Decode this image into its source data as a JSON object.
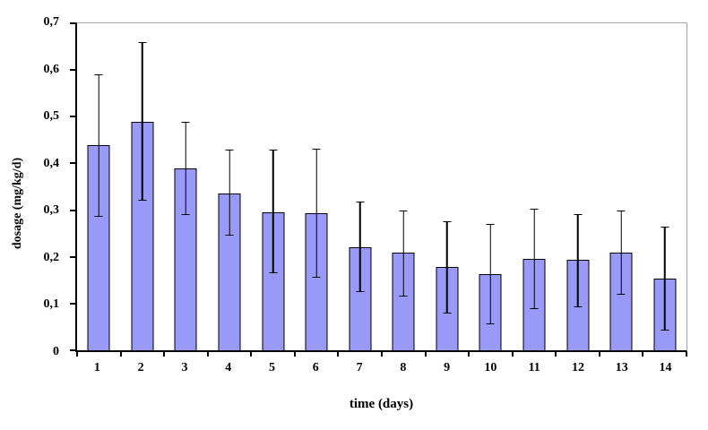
{
  "figure": {
    "background": "#FFFFFF"
  },
  "chart_data": {
    "type": "bar",
    "title": "",
    "xlabel": "time (days)",
    "ylabel": "dosage (mg/kg/d)",
    "categories": [
      "1",
      "2",
      "3",
      "4",
      "5",
      "6",
      "7",
      "8",
      "9",
      "10",
      "11",
      "12",
      "13",
      "14"
    ],
    "values": [
      0.44,
      0.49,
      0.39,
      0.335,
      0.295,
      0.293,
      0.22,
      0.21,
      0.178,
      0.163,
      0.195,
      0.193,
      0.209,
      0.154
    ],
    "error_high": [
      0.59,
      0.66,
      0.49,
      0.43,
      0.43,
      0.432,
      0.318,
      0.3,
      0.277,
      0.271,
      0.303,
      0.292,
      0.3,
      0.265
    ],
    "error_low": [
      0.285,
      0.32,
      0.29,
      0.245,
      0.165,
      0.155,
      0.125,
      0.115,
      0.078,
      0.055,
      0.088,
      0.092,
      0.118,
      0.042
    ],
    "ylim": [
      0,
      0.7
    ],
    "y_tick_step": 0.1,
    "y_tick_labels": [
      "0",
      "0,1",
      "0,2",
      "0,3",
      "0,4",
      "0,5",
      "0,6",
      "0,7"
    ],
    "decimal_separator": ",",
    "grid": false,
    "legend": "none",
    "bar_color": "#9999F8",
    "bar_border_color": "#000000",
    "error_bar_color": "#000000",
    "frame_color": "#A6A6A6",
    "axis_color": "#000000"
  }
}
